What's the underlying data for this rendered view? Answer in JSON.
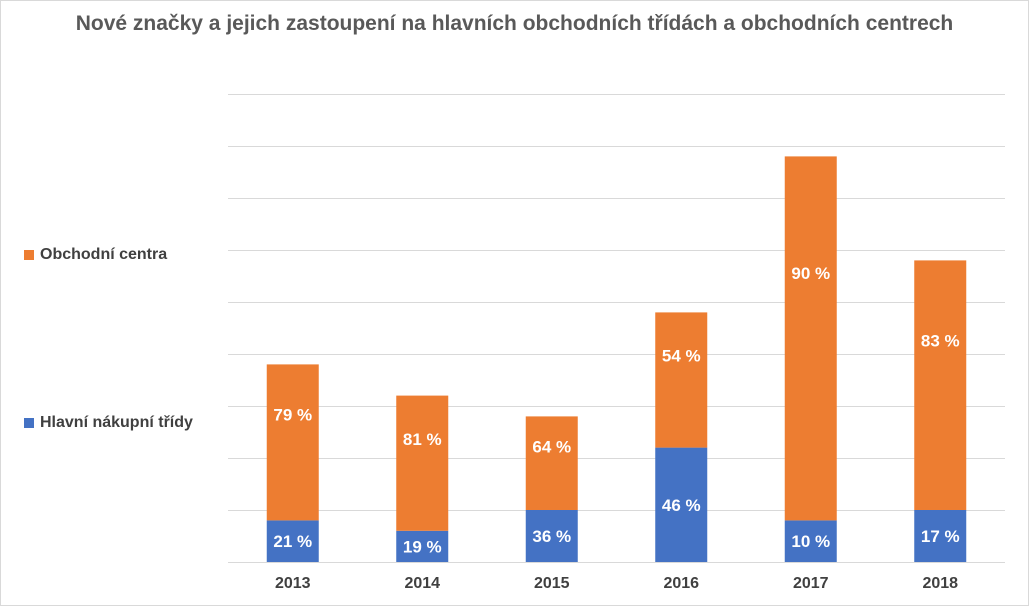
{
  "chart_data": {
    "type": "bar",
    "stacked": true,
    "title": "Nové značky a jejich zastoupení na hlavních obchodních třídách a obchodních centrech",
    "categories": [
      "2013",
      "2014",
      "2015",
      "2016",
      "2017",
      "2018"
    ],
    "series": [
      {
        "name": "Hlavní nákupní třídy",
        "color": "#4472c4",
        "values": [
          0.8,
          0.6,
          1.0,
          2.2,
          0.8,
          1.0
        ],
        "labels": [
          "21 %",
          "19 %",
          "36 %",
          "46 %",
          "10 %",
          "17 %"
        ]
      },
      {
        "name": "Obchodní centra",
        "color": "#ed7d31",
        "values": [
          3.0,
          2.6,
          1.8,
          2.6,
          7.0,
          4.8
        ],
        "labels": [
          "79 %",
          "81 %",
          "64 %",
          "54 %",
          "90 %",
          "83 %"
        ]
      }
    ],
    "ylim": [
      0,
      9
    ],
    "y_gridlines": [
      0,
      1,
      2,
      3,
      4,
      5,
      6,
      7,
      8,
      9
    ],
    "y_tick_labels_shown": false,
    "grid": true,
    "legend_position": "left"
  }
}
